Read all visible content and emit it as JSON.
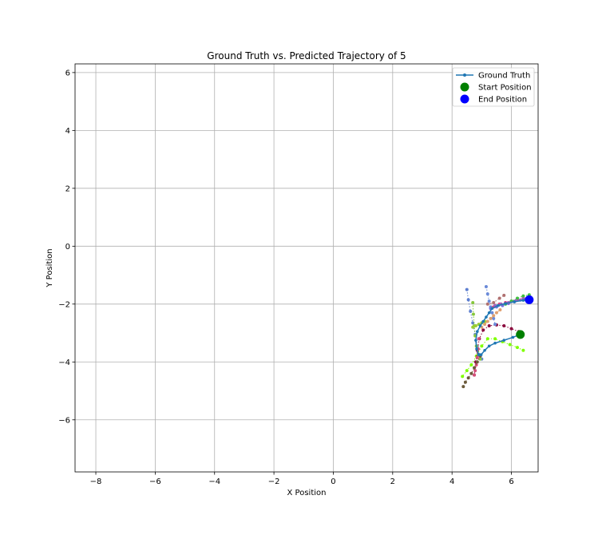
{
  "chart_data": {
    "type": "scatter",
    "title": "Ground Truth vs. Predicted Trajectory of 5",
    "xlabel": "X Position",
    "ylabel": "Y Position",
    "xlim": [
      -8.7,
      6.9
    ],
    "ylim": [
      -7.8,
      6.3
    ],
    "xticks": [
      -8,
      -6,
      -4,
      -2,
      0,
      2,
      4,
      6
    ],
    "yticks": [
      -6,
      -4,
      -2,
      0,
      2,
      4,
      6
    ],
    "grid": true,
    "legend_position": "top-right",
    "legend": [
      {
        "name": "Ground Truth",
        "kind": "line-marker",
        "color": "#1f77b4"
      },
      {
        "name": "Start Position",
        "kind": "marker",
        "color": "#008000"
      },
      {
        "name": "End Position",
        "kind": "marker",
        "color": "#0000ff"
      }
    ],
    "ground_truth": {
      "name": "Ground Truth",
      "color": "#1f77b4",
      "x": [
        6.3,
        6.05,
        5.75,
        5.45,
        5.25,
        5.1,
        4.98,
        4.9,
        4.83,
        4.8,
        4.85,
        4.95,
        5.05,
        5.15,
        5.25,
        5.35,
        5.55,
        5.8,
        6.1,
        6.4,
        6.6
      ],
      "y": [
        -3.05,
        -3.15,
        -3.25,
        -3.35,
        -3.45,
        -3.6,
        -3.75,
        -3.75,
        -3.55,
        -3.25,
        -2.95,
        -2.75,
        -2.6,
        -2.45,
        -2.3,
        -2.15,
        -2.05,
        -1.98,
        -1.92,
        -1.87,
        -1.85
      ]
    },
    "start": {
      "name": "Start Position",
      "color": "#008000",
      "x": 6.3,
      "y": -3.05
    },
    "end": {
      "name": "End Position",
      "color": "#0000ff",
      "x": 6.6,
      "y": -1.85
    },
    "predictions": [
      {
        "color": "#7fff00",
        "x": [
          6.4,
          6.2,
          5.95,
          5.7,
          5.45,
          5.2,
          5.0,
          4.82,
          4.65,
          4.5,
          4.35
        ],
        "y": [
          -3.6,
          -3.5,
          -3.4,
          -3.3,
          -3.2,
          -3.2,
          -3.45,
          -3.8,
          -4.1,
          -4.3,
          -4.5
        ]
      },
      {
        "color": "#8b0a3e",
        "x": [
          6.25,
          6.0,
          5.75,
          5.5,
          5.25,
          5.05,
          4.92,
          4.85,
          4.8,
          4.75
        ],
        "y": [
          -2.95,
          -2.85,
          -2.75,
          -2.72,
          -2.75,
          -2.9,
          -3.2,
          -3.6,
          -4.0,
          -4.45
        ]
      },
      {
        "color": "#5e7fd0",
        "x": [
          4.5,
          4.55,
          4.62,
          4.7,
          4.78,
          4.85,
          4.92,
          5.0
        ],
        "y": [
          -1.5,
          -1.85,
          -2.25,
          -2.65,
          -3.05,
          -3.45,
          -3.75,
          -3.9
        ]
      },
      {
        "color": "#86c83a",
        "x": [
          4.7,
          4.72,
          4.75,
          4.78,
          4.82,
          4.88,
          4.95
        ],
        "y": [
          -1.95,
          -2.35,
          -2.75,
          -3.1,
          -3.45,
          -3.75,
          -3.9
        ]
      },
      {
        "color": "#d4507a",
        "x": [
          4.9,
          4.88,
          4.85,
          4.82,
          4.78,
          4.75
        ],
        "y": [
          -3.2,
          -3.55,
          -3.85,
          -4.1,
          -4.3,
          -4.45
        ]
      },
      {
        "color": "#6b5a3a",
        "x": [
          4.95,
          4.85,
          4.75,
          4.65,
          4.55,
          4.45,
          4.38
        ],
        "y": [
          -3.8,
          -4.0,
          -4.2,
          -4.4,
          -4.55,
          -4.7,
          -4.85
        ]
      },
      {
        "color": "#6a8ad8",
        "x": [
          5.15,
          5.2,
          5.25,
          5.3,
          5.35,
          5.4,
          5.45
        ],
        "y": [
          -1.4,
          -1.65,
          -1.9,
          -2.1,
          -2.3,
          -2.5,
          -2.7
        ]
      },
      {
        "color": "#e0a070",
        "x": [
          5.0,
          5.1,
          5.2,
          5.3,
          5.4,
          5.5,
          5.62
        ],
        "y": [
          -2.8,
          -2.7,
          -2.6,
          -2.5,
          -2.4,
          -2.3,
          -2.2
        ]
      },
      {
        "color": "#7070e0",
        "x": [
          5.3,
          5.5,
          5.7,
          5.9,
          6.1,
          6.3,
          6.5
        ],
        "y": [
          -2.15,
          -2.1,
          -2.05,
          -1.98,
          -1.92,
          -1.86,
          -1.82
        ]
      },
      {
        "color": "#e04080",
        "x": [
          5.4,
          5.6,
          5.8,
          6.0,
          6.2,
          6.4,
          6.55
        ],
        "y": [
          -2.1,
          -2.0,
          -1.95,
          -1.9,
          -1.85,
          -1.8,
          -1.78
        ]
      },
      {
        "color": "#40c040",
        "x": [
          5.8,
          6.0,
          6.2,
          6.4,
          6.6
        ],
        "y": [
          -2.0,
          -1.9,
          -1.8,
          -1.72,
          -1.68
        ]
      },
      {
        "color": "#b07070",
        "x": [
          5.2,
          5.4,
          5.6,
          5.75
        ],
        "y": [
          -2.0,
          -1.95,
          -1.8,
          -1.7
        ]
      },
      {
        "color": "#a060c0",
        "x": [
          5.45,
          5.65,
          5.9,
          6.15,
          6.4,
          6.62
        ],
        "y": [
          -2.05,
          -2.0,
          -1.95,
          -1.88,
          -1.82,
          -1.75
        ]
      },
      {
        "color": "#9acd32",
        "x": [
          4.7,
          4.8,
          4.9,
          5.0,
          5.1
        ],
        "y": [
          -2.8,
          -2.75,
          -2.7,
          -2.65,
          -2.6
        ]
      }
    ]
  }
}
